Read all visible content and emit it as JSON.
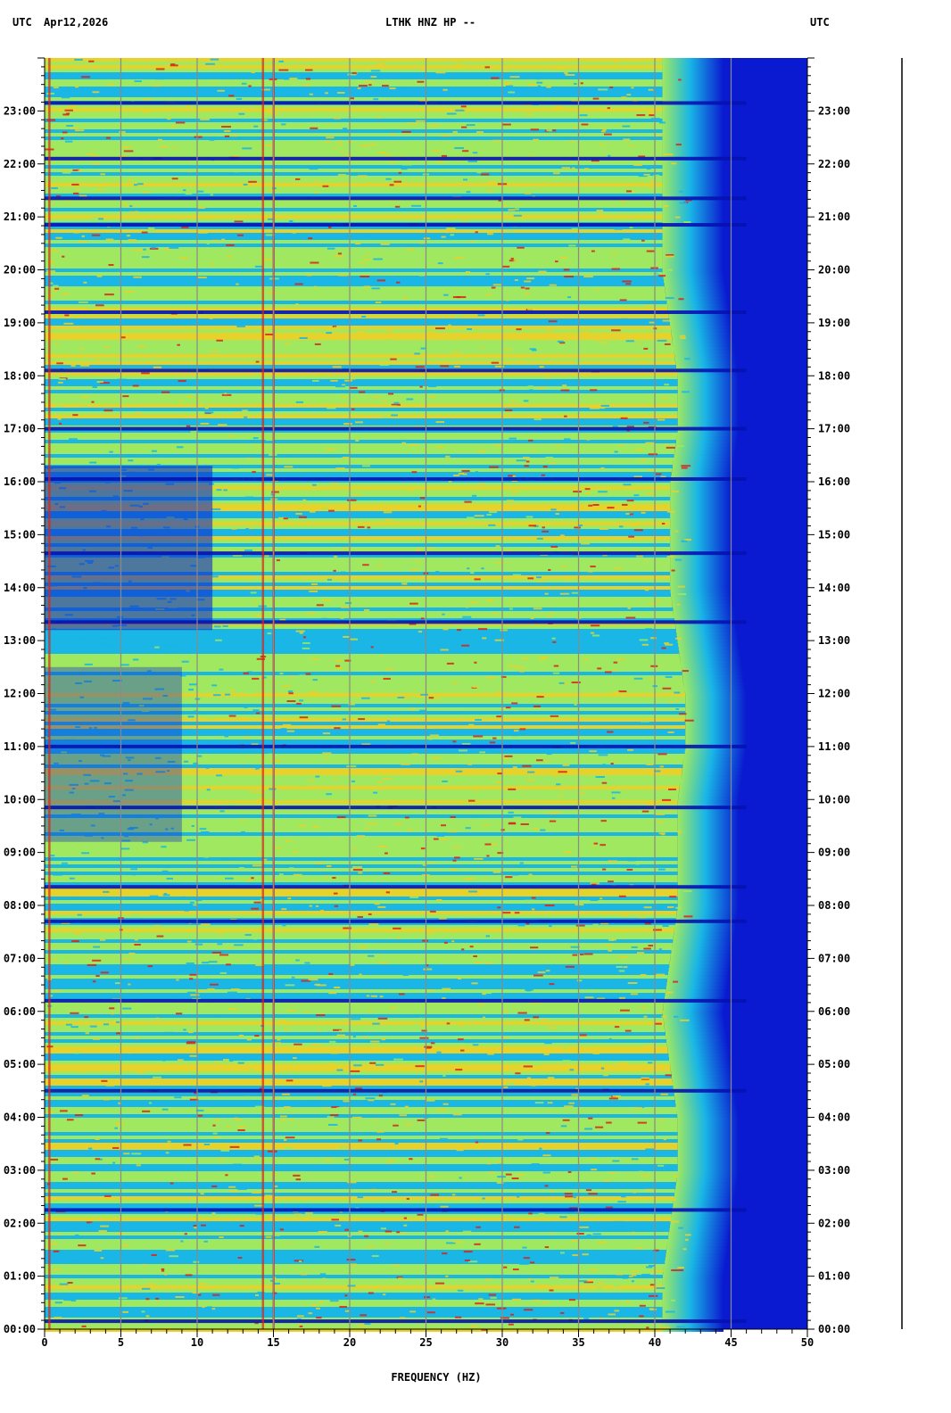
{
  "header": {
    "left_tz": "UTC",
    "date": "Apr12,2026",
    "station": "LTHK HNZ HP --",
    "right_tz": "UTC"
  },
  "colors": {
    "low": "#0a1ad0",
    "mid_low": "#19b6e6",
    "mid": "#9fe860",
    "mid_high": "#e6d22a",
    "high": "#d8241a",
    "grid": "#8a8a8a"
  },
  "chart_data": {
    "type": "heatmap",
    "xlabel": "FREQUENCY (HZ)",
    "xlim": [
      0,
      50
    ],
    "x_ticks": [
      0,
      5,
      10,
      15,
      20,
      25,
      30,
      35,
      40,
      45,
      50
    ],
    "x_tick_labels": [
      "0",
      "5",
      "10",
      "15",
      "20",
      "25",
      "30",
      "35",
      "40",
      "45",
      "50"
    ],
    "ylim_hours": [
      0,
      24
    ],
    "y_ticks_hours": [
      0,
      1,
      2,
      3,
      4,
      5,
      6,
      7,
      8,
      9,
      10,
      11,
      12,
      13,
      14,
      15,
      16,
      17,
      18,
      19,
      20,
      21,
      22,
      23
    ],
    "y_tick_labels": [
      "00:00",
      "01:00",
      "02:00",
      "03:00",
      "04:00",
      "05:00",
      "06:00",
      "07:00",
      "08:00",
      "09:00",
      "10:00",
      "11:00",
      "12:00",
      "13:00",
      "14:00",
      "15:00",
      "16:00",
      "17:00",
      "18:00",
      "19:00",
      "20:00",
      "21:00",
      "22:00",
      "23:00"
    ],
    "energy_cutoff_hz_by_hour": [
      43,
      43,
      43.5,
      44,
      44,
      43.5,
      43,
      43.5,
      44,
      44,
      44,
      44.5,
      44.5,
      44,
      43.5,
      43.5,
      43.5,
      44,
      44,
      43.5,
      43,
      43,
      43,
      43,
      43
    ],
    "dark_bands_hours": [
      0.15,
      2.25,
      4.5,
      6.2,
      7.7,
      8.35,
      9.85,
      11.0,
      13.35,
      14.65,
      16.05,
      17.0,
      18.1,
      19.2,
      20.85,
      21.35,
      22.1,
      23.15
    ],
    "persistent_lines_hz": [
      0.3,
      14.3,
      15.0
    ]
  }
}
